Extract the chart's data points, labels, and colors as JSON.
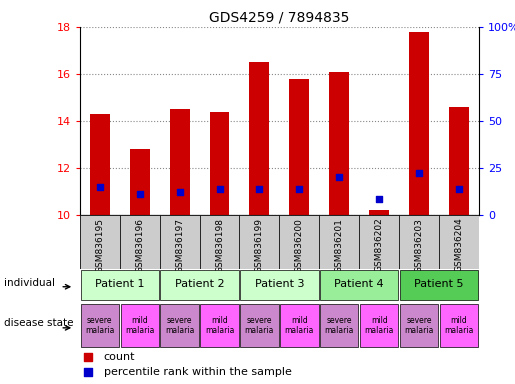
{
  "title": "GDS4259 / 7894835",
  "samples": [
    "GSM836195",
    "GSM836196",
    "GSM836197",
    "GSM836198",
    "GSM836199",
    "GSM836200",
    "GSM836201",
    "GSM836202",
    "GSM836203",
    "GSM836204"
  ],
  "bar_values": [
    14.3,
    12.8,
    14.5,
    14.4,
    16.5,
    15.8,
    16.1,
    10.2,
    17.8,
    14.6
  ],
  "bar_base": 10.0,
  "percentile_values": [
    11.2,
    10.9,
    11.0,
    11.1,
    11.1,
    11.1,
    11.6,
    10.7,
    11.8,
    11.1
  ],
  "ylim": [
    10,
    18
  ],
  "yticks": [
    10,
    12,
    14,
    16,
    18
  ],
  "right_yticks": [
    0,
    25,
    50,
    75,
    100
  ],
  "right_ylim": [
    0,
    100
  ],
  "patients": [
    {
      "label": "Patient 1",
      "cols": [
        0,
        1
      ],
      "color": "#ccffcc"
    },
    {
      "label": "Patient 2",
      "cols": [
        2,
        3
      ],
      "color": "#ccffcc"
    },
    {
      "label": "Patient 3",
      "cols": [
        4,
        5
      ],
      "color": "#ccffcc"
    },
    {
      "label": "Patient 4",
      "cols": [
        6,
        7
      ],
      "color": "#99ee99"
    },
    {
      "label": "Patient 5",
      "cols": [
        8,
        9
      ],
      "color": "#55cc55"
    }
  ],
  "disease_states": [
    "severe\nmalaria",
    "mild\nmalaria",
    "severe\nmalaria",
    "mild\nmalaria",
    "severe\nmalaria",
    "mild\nmalaria",
    "severe\nmalaria",
    "mild\nmalaria",
    "severe\nmalaria",
    "mild\nmalaria"
  ],
  "disease_colors_severe": "#cc88cc",
  "disease_colors_mild": "#ff66ff",
  "disease_colors": [
    "#cc88cc",
    "#ff66ff",
    "#cc88cc",
    "#ff66ff",
    "#cc88cc",
    "#ff66ff",
    "#cc88cc",
    "#ff66ff",
    "#cc88cc",
    "#ff66ff"
  ],
  "bar_color": "#cc0000",
  "percentile_color": "#0000cc",
  "grid_color": "#888888",
  "bg_color": "#ffffff",
  "sample_bg_color": "#cccccc",
  "individual_label": "individual",
  "disease_label": "disease state",
  "legend_count": "count",
  "legend_pct": "percentile rank within the sample"
}
